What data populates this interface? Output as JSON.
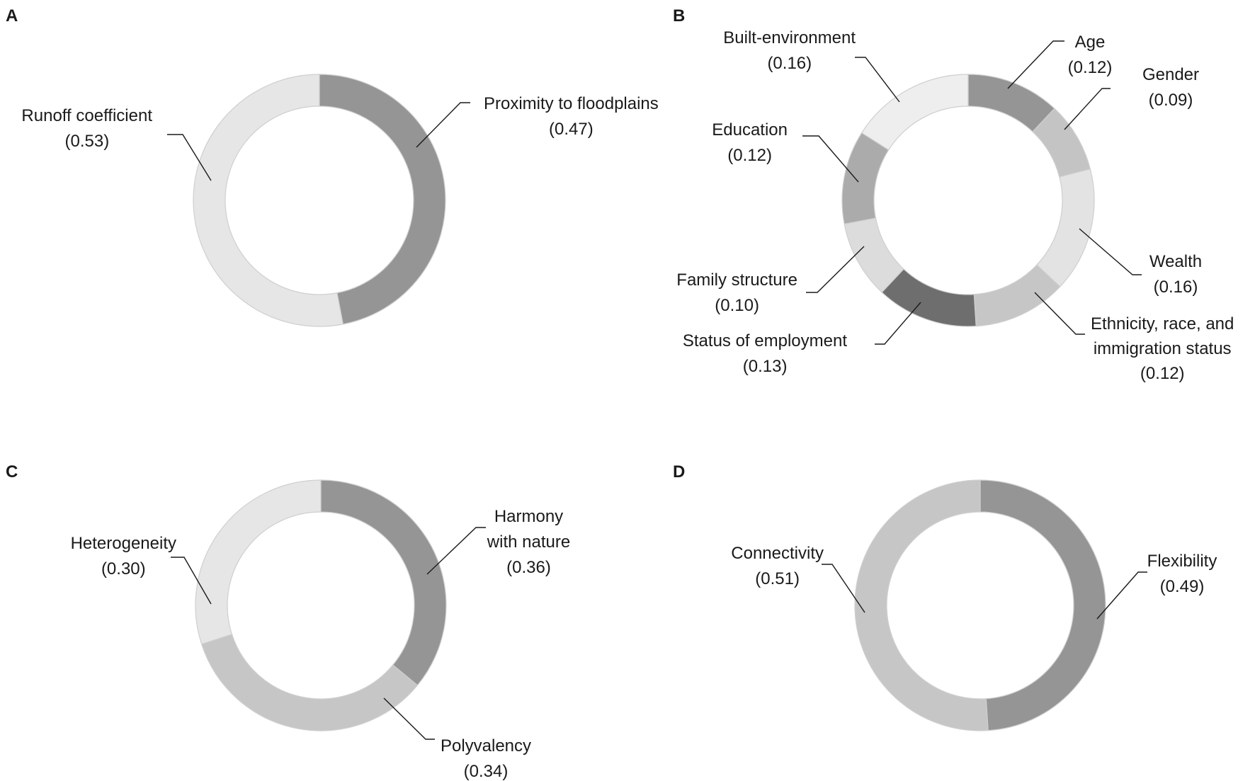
{
  "chart_data": [
    {
      "type": "pie",
      "panel": "A",
      "slices": [
        {
          "label": "Proximity to floodplains",
          "value_text": "(0.47)",
          "value": 0.47,
          "color": "#959595"
        },
        {
          "label": "Runoff coefficient",
          "value_text": "(0.53)",
          "value": 0.53,
          "color": "#e6e6e6"
        }
      ]
    },
    {
      "type": "pie",
      "panel": "B",
      "slices": [
        {
          "label": "Age",
          "value_text": "(0.12)",
          "value": 0.12,
          "color": "#959595"
        },
        {
          "label": "Gender",
          "value_text": "(0.09)",
          "value": 0.09,
          "color": "#c4c4c4"
        },
        {
          "label": "Wealth",
          "value_text": "(0.16)",
          "value": 0.16,
          "color": "#e3e3e3"
        },
        {
          "label": "Ethnicity, race, and immigration status",
          "lines": [
            "Ethnicity, race, and",
            "immigration status"
          ],
          "value_text": "(0.12)",
          "value": 0.12,
          "color": "#c6c6c6"
        },
        {
          "label": "Status of employment",
          "value_text": "(0.13)",
          "value": 0.13,
          "color": "#6e6e6e"
        },
        {
          "label": "Family structure",
          "value_text": "(0.10)",
          "value": 0.1,
          "color": "#dcdcdc"
        },
        {
          "label": "Education",
          "value_text": "(0.12)",
          "value": 0.12,
          "color": "#ababab"
        },
        {
          "label": "Built-environment",
          "value_text": "(0.16)",
          "value": 0.16,
          "color": "#eeeeee"
        }
      ]
    },
    {
      "type": "pie",
      "panel": "C",
      "slices": [
        {
          "label": "Harmony with nature",
          "lines": [
            "Harmony",
            "with nature"
          ],
          "value_text": "(0.36)",
          "value": 0.36,
          "color": "#959595"
        },
        {
          "label": "Polyvalency",
          "value_text": "(0.34)",
          "value": 0.34,
          "color": "#c6c6c6"
        },
        {
          "label": "Heterogeneity",
          "value_text": "(0.30)",
          "value": 0.3,
          "color": "#e6e6e6"
        }
      ]
    },
    {
      "type": "pie",
      "panel": "D",
      "slices": [
        {
          "label": "Flexibility",
          "value_text": "(0.49)",
          "value": 0.49,
          "color": "#959595"
        },
        {
          "label": "Connectivity",
          "value_text": "(0.51)",
          "value": 0.51,
          "color": "#c6c6c6"
        }
      ]
    }
  ]
}
